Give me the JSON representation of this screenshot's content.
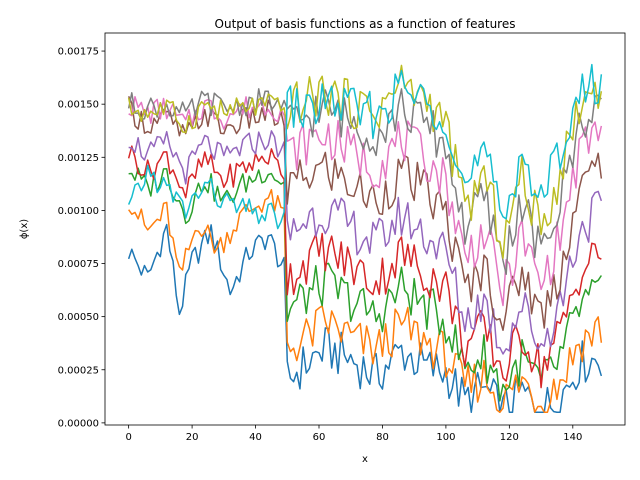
{
  "chart_data": {
    "type": "line",
    "title": "Output of basis functions as a function of features",
    "xlabel": "x",
    "ylabel": "ϕ(x)",
    "xlim": [
      -7.45,
      156.45
    ],
    "ylim": [
      -1e-05,
      0.001835
    ],
    "x_ticks": [
      0,
      20,
      40,
      60,
      80,
      100,
      120,
      140
    ],
    "x_tick_labels": [
      "0",
      "20",
      "40",
      "60",
      "80",
      "100",
      "120",
      "140"
    ],
    "y_ticks": [
      0,
      0.00025,
      0.0005,
      0.00075,
      0.001,
      0.00125,
      0.0015,
      0.00175
    ],
    "y_tick_labels": [
      "0.00000",
      "0.00025",
      "0.00050",
      "0.00075",
      "0.00100",
      "0.00125",
      "0.00150",
      "0.00175"
    ],
    "grid": false,
    "legend": "none",
    "x_start": 0,
    "x_step": 1,
    "series": [
      {
        "color": "#1f77b4",
        "anchors": [
          [
            0,
            0.00081
          ],
          [
            6,
            0.00068
          ],
          [
            12,
            0.00092
          ],
          [
            16,
            0.00052
          ],
          [
            20,
            0.00076
          ],
          [
            26,
            0.0009
          ],
          [
            32,
            0.00062
          ],
          [
            38,
            0.0008
          ],
          [
            44,
            0.00088
          ],
          [
            49,
            0.00072
          ],
          [
            50,
            0.0002
          ],
          [
            56,
            0.00028
          ],
          [
            62,
            0.00035
          ],
          [
            70,
            0.0003
          ],
          [
            78,
            0.00022
          ],
          [
            86,
            0.00034
          ],
          [
            94,
            0.00026
          ],
          [
            100,
            0.00024
          ],
          [
            106,
            0.0001
          ],
          [
            112,
            0.00016
          ],
          [
            118,
            5e-05
          ],
          [
            124,
            0.00014
          ],
          [
            130,
            6e-05
          ],
          [
            136,
            0.00012
          ],
          [
            142,
            0.00028
          ],
          [
            149,
            0.00031
          ]
        ]
      },
      {
        "color": "#ff7f0e",
        "anchors": [
          [
            0,
            0.00106
          ],
          [
            6,
            0.0009
          ],
          [
            12,
            0.001
          ],
          [
            16,
            0.00068
          ],
          [
            22,
            0.00095
          ],
          [
            28,
            0.00082
          ],
          [
            36,
            0.00098
          ],
          [
            44,
            0.00106
          ],
          [
            49,
            0.00098
          ],
          [
            50,
            0.00035
          ],
          [
            56,
            0.0004
          ],
          [
            62,
            0.00048
          ],
          [
            70,
            0.0004
          ],
          [
            78,
            0.00034
          ],
          [
            86,
            0.00046
          ],
          [
            94,
            0.00038
          ],
          [
            100,
            0.00032
          ],
          [
            106,
            0.00016
          ],
          [
            112,
            0.00022
          ],
          [
            118,
            0.0001
          ],
          [
            124,
            0.0002
          ],
          [
            130,
            0.0001
          ],
          [
            136,
            0.0002
          ],
          [
            142,
            0.00038
          ],
          [
            149,
            0.00045
          ]
        ]
      },
      {
        "color": "#2ca02c",
        "anchors": [
          [
            0,
            0.0012
          ],
          [
            6,
            0.0011
          ],
          [
            12,
            0.00118
          ],
          [
            18,
            0.00098
          ],
          [
            24,
            0.00115
          ],
          [
            30,
            0.00104
          ],
          [
            36,
            0.00112
          ],
          [
            44,
            0.0012
          ],
          [
            49,
            0.00112
          ],
          [
            50,
            0.00052
          ],
          [
            56,
            0.0006
          ],
          [
            62,
            0.00066
          ],
          [
            70,
            0.00058
          ],
          [
            78,
            0.0005
          ],
          [
            86,
            0.00064
          ],
          [
            94,
            0.00054
          ],
          [
            100,
            0.00048
          ],
          [
            106,
            0.00026
          ],
          [
            112,
            0.00032
          ],
          [
            118,
            0.00016
          ],
          [
            124,
            0.0003
          ],
          [
            130,
            0.00018
          ],
          [
            136,
            0.0003
          ],
          [
            142,
            0.00054
          ],
          [
            149,
            0.00062
          ]
        ]
      },
      {
        "color": "#d62728",
        "anchors": [
          [
            0,
            0.00128
          ],
          [
            6,
            0.00118
          ],
          [
            12,
            0.00126
          ],
          [
            18,
            0.00108
          ],
          [
            24,
            0.00124
          ],
          [
            30,
            0.00114
          ],
          [
            36,
            0.0012
          ],
          [
            44,
            0.00126
          ],
          [
            49,
            0.00118
          ],
          [
            50,
            0.00068
          ],
          [
            56,
            0.00076
          ],
          [
            62,
            0.00082
          ],
          [
            70,
            0.00074
          ],
          [
            78,
            0.00066
          ],
          [
            86,
            0.0008
          ],
          [
            94,
            0.0007
          ],
          [
            100,
            0.00064
          ],
          [
            106,
            0.00036
          ],
          [
            112,
            0.00044
          ],
          [
            118,
            0.00024
          ],
          [
            124,
            0.00042
          ],
          [
            130,
            0.00026
          ],
          [
            136,
            0.00042
          ],
          [
            142,
            0.0007
          ],
          [
            149,
            0.00082
          ]
        ]
      },
      {
        "color": "#9467bd",
        "anchors": [
          [
            0,
            0.00135
          ],
          [
            6,
            0.00126
          ],
          [
            12,
            0.00132
          ],
          [
            18,
            0.00118
          ],
          [
            24,
            0.00132
          ],
          [
            30,
            0.00124
          ],
          [
            36,
            0.0013
          ],
          [
            44,
            0.00134
          ],
          [
            49,
            0.00128
          ],
          [
            50,
            0.00088
          ],
          [
            56,
            0.00096
          ],
          [
            62,
            0.001
          ],
          [
            70,
            0.00092
          ],
          [
            78,
            0.00084
          ],
          [
            86,
            0.00098
          ],
          [
            94,
            0.00088
          ],
          [
            100,
            0.0008
          ],
          [
            106,
            0.00048
          ],
          [
            112,
            0.00058
          ],
          [
            118,
            0.00036
          ],
          [
            124,
            0.00056
          ],
          [
            130,
            0.00036
          ],
          [
            136,
            0.00056
          ],
          [
            142,
            0.0009
          ],
          [
            149,
            0.00103
          ]
        ]
      },
      {
        "color": "#8c564b",
        "anchors": [
          [
            0,
            0.00148
          ],
          [
            6,
            0.0014
          ],
          [
            12,
            0.00144
          ],
          [
            18,
            0.00134
          ],
          [
            24,
            0.00146
          ],
          [
            30,
            0.00138
          ],
          [
            36,
            0.00142
          ],
          [
            44,
            0.00146
          ],
          [
            49,
            0.0014
          ],
          [
            50,
            0.0011
          ],
          [
            56,
            0.00116
          ],
          [
            62,
            0.0012
          ],
          [
            70,
            0.00112
          ],
          [
            78,
            0.00104
          ],
          [
            86,
            0.00118
          ],
          [
            94,
            0.00108
          ],
          [
            100,
            0.00098
          ],
          [
            106,
            0.00062
          ],
          [
            112,
            0.00074
          ],
          [
            118,
            0.00048
          ],
          [
            124,
            0.00072
          ],
          [
            130,
            0.0005
          ],
          [
            136,
            0.00072
          ],
          [
            142,
            0.00108
          ],
          [
            149,
            0.00124
          ]
        ]
      },
      {
        "color": "#e377c2",
        "anchors": [
          [
            0,
            0.0015
          ],
          [
            6,
            0.00146
          ],
          [
            12,
            0.00148
          ],
          [
            18,
            0.0014
          ],
          [
            24,
            0.0015
          ],
          [
            30,
            0.00144
          ],
          [
            36,
            0.00148
          ],
          [
            44,
            0.0015
          ],
          [
            49,
            0.00146
          ],
          [
            50,
            0.00126
          ],
          [
            56,
            0.00132
          ],
          [
            62,
            0.00136
          ],
          [
            70,
            0.00128
          ],
          [
            78,
            0.0012
          ],
          [
            86,
            0.00134
          ],
          [
            94,
            0.00124
          ],
          [
            100,
            0.00114
          ],
          [
            106,
            0.00078
          ],
          [
            112,
            0.0009
          ],
          [
            118,
            0.00062
          ],
          [
            124,
            0.00088
          ],
          [
            130,
            0.00064
          ],
          [
            136,
            0.00088
          ],
          [
            142,
            0.00126
          ],
          [
            149,
            0.00141
          ]
        ]
      },
      {
        "color": "#7f7f7f",
        "anchors": [
          [
            0,
            0.0015
          ],
          [
            6,
            0.00148
          ],
          [
            12,
            0.0015
          ],
          [
            18,
            0.00144
          ],
          [
            24,
            0.00152
          ],
          [
            30,
            0.00148
          ],
          [
            36,
            0.0015
          ],
          [
            44,
            0.00152
          ],
          [
            49,
            0.00148
          ],
          [
            50,
            0.0014
          ],
          [
            56,
            0.00144
          ],
          [
            62,
            0.00148
          ],
          [
            70,
            0.00142
          ],
          [
            78,
            0.00136
          ],
          [
            86,
            0.00148
          ],
          [
            94,
            0.0014
          ],
          [
            100,
            0.0013
          ],
          [
            106,
            0.00092
          ],
          [
            112,
            0.00106
          ],
          [
            118,
            0.00076
          ],
          [
            124,
            0.00104
          ],
          [
            130,
            0.00078
          ],
          [
            136,
            0.00104
          ],
          [
            142,
            0.0014
          ],
          [
            149,
            0.00154
          ]
        ]
      },
      {
        "color": "#bcbd22",
        "anchors": [
          [
            0,
            0.00148
          ],
          [
            6,
            0.00146
          ],
          [
            12,
            0.00148
          ],
          [
            18,
            0.0014
          ],
          [
            24,
            0.0015
          ],
          [
            30,
            0.00146
          ],
          [
            36,
            0.00148
          ],
          [
            44,
            0.0015
          ],
          [
            49,
            0.00146
          ],
          [
            50,
            0.00148
          ],
          [
            56,
            0.00152
          ],
          [
            62,
            0.00156
          ],
          [
            70,
            0.0015
          ],
          [
            78,
            0.00146
          ],
          [
            86,
            0.0016
          ],
          [
            94,
            0.00152
          ],
          [
            100,
            0.0014
          ],
          [
            106,
            0.001
          ],
          [
            112,
            0.00116
          ],
          [
            118,
            0.00086
          ],
          [
            124,
            0.00116
          ],
          [
            130,
            0.0009
          ],
          [
            136,
            0.00118
          ],
          [
            142,
            0.0015
          ],
          [
            149,
            0.0016
          ]
        ]
      },
      {
        "color": "#17becf",
        "anchors": [
          [
            0,
            0.001
          ],
          [
            6,
            0.00118
          ],
          [
            12,
            0.0011
          ],
          [
            18,
            0.001
          ],
          [
            24,
            0.00112
          ],
          [
            30,
            0.00104
          ],
          [
            36,
            0.001
          ],
          [
            44,
            0.00098
          ],
          [
            49,
            0.00096
          ],
          [
            50,
            0.0015
          ],
          [
            56,
            0.00146
          ],
          [
            62,
            0.00152
          ],
          [
            70,
            0.00148
          ],
          [
            78,
            0.00144
          ],
          [
            86,
            0.00158
          ],
          [
            94,
            0.0015
          ],
          [
            100,
            0.00146
          ],
          [
            106,
            0.0011
          ],
          [
            112,
            0.00126
          ],
          [
            118,
            0.00096
          ],
          [
            124,
            0.00128
          ],
          [
            130,
            0.00102
          ],
          [
            136,
            0.0013
          ],
          [
            142,
            0.00154
          ],
          [
            149,
            0.00161
          ]
        ]
      }
    ]
  }
}
